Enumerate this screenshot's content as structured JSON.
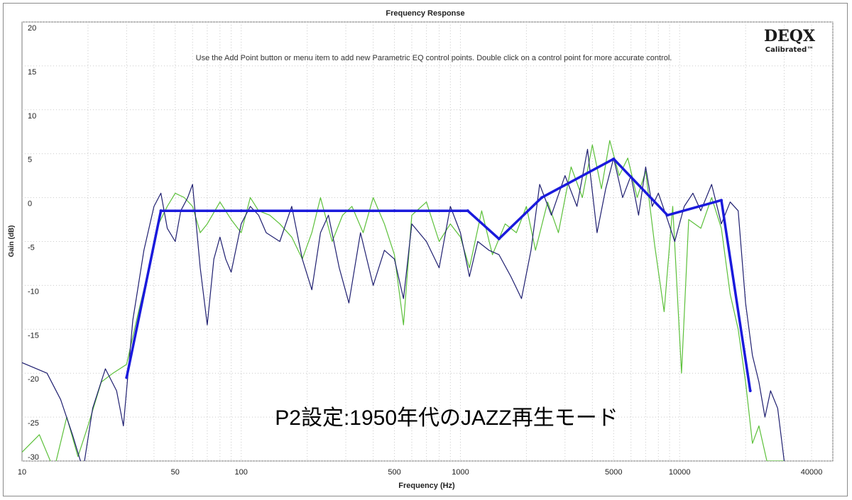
{
  "chart_data": {
    "type": "line",
    "title": "Frequency Response",
    "instruction": "Use the Add Point button or menu item to add new Parametric EQ control points.  Double click on a control point for more accurate control.",
    "annotation": "P2設定:1950年代のJAZZ再生モード",
    "logo": {
      "main": "DEQX",
      "sub": "Calibrated™"
    },
    "xlabel": "Frequency (Hz)",
    "ylabel": "Gain (dB)",
    "x_scale": "log",
    "xlim": [
      10,
      50000
    ],
    "ylim": [
      -30,
      20
    ],
    "x_ticks": [
      10,
      50,
      100,
      500,
      1000,
      5000,
      10000,
      40000
    ],
    "y_ticks": [
      20,
      15,
      10,
      5,
      0,
      -5,
      -10,
      -15,
      -20,
      -25,
      -30
    ],
    "grid": true,
    "colors": {
      "eq_curve": "#1a1adc",
      "navy_trace": "#1f1f70",
      "green_trace": "#5cc03a"
    },
    "series": [
      {
        "role": "eq-curve",
        "x": [
          30,
          43,
          100,
          500,
          1080,
          1500,
          2350,
          5000,
          8800,
          15500,
          21000
        ],
        "values": [
          -20.5,
          -1.5,
          -1.5,
          -1.5,
          -1.5,
          -4.7,
          0,
          4.4,
          -2,
          -0.3,
          -22
        ]
      },
      {
        "role": "navy-trace",
        "x": [
          10,
          13,
          15,
          17,
          19,
          21,
          24,
          27,
          29,
          32,
          36,
          40,
          43,
          46,
          50,
          53,
          57,
          60,
          65,
          70,
          75,
          80,
          85,
          90,
          100,
          110,
          120,
          130,
          150,
          170,
          190,
          210,
          230,
          250,
          280,
          310,
          350,
          400,
          450,
          500,
          550,
          600,
          700,
          800,
          900,
          1000,
          1100,
          1200,
          1350,
          1500,
          1700,
          1900,
          2100,
          2300,
          2600,
          3000,
          3400,
          3800,
          4200,
          4600,
          5000,
          5500,
          6000,
          6500,
          7000,
          7500,
          8000,
          8800,
          9500,
          10500,
          11500,
          12500,
          14000,
          15500,
          17000,
          18500,
          20000,
          21500,
          23000,
          24500,
          26000,
          28000,
          30000
        ],
        "values": [
          -18.8,
          -20,
          -23,
          -27,
          -31,
          -24,
          -19.5,
          -22,
          -26,
          -14,
          -6,
          -1,
          0.5,
          -3.5,
          -5,
          -1.5,
          0,
          1.5,
          -8,
          -14.5,
          -7,
          -4.5,
          -7,
          -8.5,
          -3,
          -1,
          -2,
          -4,
          -5,
          -1,
          -7,
          -10.5,
          -4,
          -2,
          -8,
          -12,
          -4,
          -10,
          -6,
          -7,
          -11.5,
          -3,
          -5,
          -8,
          -1,
          -4,
          -9,
          -5,
          -6,
          -6.5,
          -9,
          -11.5,
          -6,
          1.5,
          -2,
          2.5,
          -1,
          5.5,
          -4,
          1,
          4.5,
          0,
          2.5,
          -2,
          3.5,
          -1,
          0.5,
          -2.5,
          -5,
          -1,
          0.5,
          -1.5,
          1.5,
          -3,
          -0.5,
          -1.5,
          -12,
          -18,
          -21,
          -25,
          -22,
          -24,
          -30
        ]
      },
      {
        "role": "green-trace",
        "x": [
          10,
          12,
          14,
          16,
          18,
          20,
          23,
          26,
          30,
          34,
          38,
          42,
          46,
          50,
          55,
          60,
          65,
          70,
          80,
          90,
          100,
          110,
          120,
          135,
          150,
          170,
          190,
          210,
          230,
          260,
          290,
          320,
          360,
          400,
          450,
          500,
          550,
          600,
          700,
          800,
          900,
          1000,
          1100,
          1250,
          1400,
          1600,
          1800,
          2000,
          2200,
          2500,
          2800,
          3200,
          3600,
          4000,
          4400,
          4800,
          5300,
          5800,
          6400,
          7000,
          7700,
          8500,
          9300,
          10200,
          11000,
          12500,
          14000,
          15500,
          17000,
          18500,
          20000,
          21500,
          23000,
          25000,
          27000,
          29000,
          30000
        ],
        "values": [
          -29,
          -27,
          -31,
          -25,
          -29.5,
          -26,
          -21,
          -20,
          -19,
          -13,
          -8,
          -3,
          -1,
          0.5,
          0,
          -1,
          -4,
          -3,
          -0.5,
          -2.5,
          -4,
          0,
          -1.5,
          -2,
          -3,
          -4.5,
          -7,
          -4,
          0,
          -5,
          -2,
          -1,
          -4,
          0,
          -3,
          -6.5,
          -14.5,
          -2,
          -0.5,
          -5,
          -3,
          -4.5,
          -8,
          -1.5,
          -6.5,
          -3,
          -4,
          -1,
          -6,
          -0.5,
          -4,
          3.5,
          0,
          6,
          1,
          6.5,
          2.5,
          4.5,
          0,
          3,
          -5.5,
          -13,
          -1,
          -20,
          -2.5,
          -3.5,
          0,
          -3.5,
          -11,
          -15,
          -21,
          -28,
          -26,
          -30,
          -30,
          -30,
          -30
        ]
      }
    ]
  }
}
